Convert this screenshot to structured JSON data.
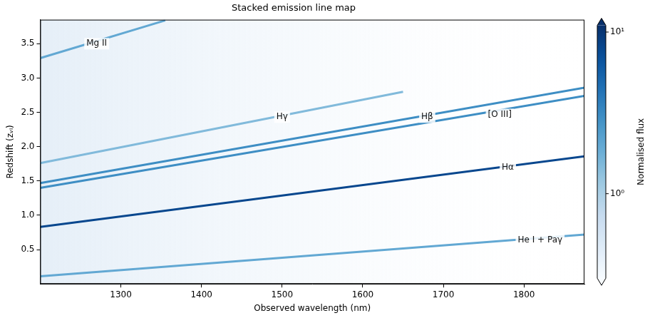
{
  "chart_data": {
    "type": "heatmap",
    "title": "Stacked emission line map",
    "x_label": "Observed wavelength (nm)",
    "y_label": "Redshift (zᵥᵢ)",
    "xlim": [
      1200,
      1875
    ],
    "xticks": [
      1300,
      1400,
      1500,
      1600,
      1700,
      1800
    ],
    "ylim": [
      0,
      3.85
    ],
    "yticks": [
      0.5,
      {
        "value": 1,
        "label": "1.0"
      },
      1.5,
      {
        "value": 2,
        "label": "2.0"
      },
      2.5,
      {
        "value": 3,
        "label": "3.0"
      },
      3.5
    ],
    "grid": false,
    "series": [
      {
        "name": "Mg II",
        "x": [
          1200,
          1355
        ],
        "values": [
          3.29,
          3.84
        ],
        "flux": 2,
        "label_x": 1270,
        "label_y": 3.5
      },
      {
        "name": "Hγ",
        "x": [
          1200,
          1650
        ],
        "values": [
          1.76,
          2.8
        ],
        "flux": 1.5,
        "label_x": 1500,
        "label_y": 2.43
      },
      {
        "name": "Hβ",
        "x": [
          1200,
          1875
        ],
        "values": [
          1.47,
          2.86
        ],
        "flux": 3,
        "label_x": 1680,
        "label_y": 2.43
      },
      {
        "name": "[O III]",
        "x": [
          1200,
          1875
        ],
        "values": [
          1.4,
          2.74
        ],
        "flux": 3,
        "label_x": 1770,
        "label_y": 2.47
      },
      {
        "name": "Hα",
        "x": [
          1200,
          1875
        ],
        "values": [
          0.83,
          1.86
        ],
        "flux": 8,
        "label_x": 1780,
        "label_y": 1.7
      },
      {
        "name": "He I + Paγ",
        "x": [
          1200,
          1875
        ],
        "values": [
          0.11,
          0.72
        ],
        "flux": 2,
        "label_x": 1820,
        "label_y": 0.64
      }
    ],
    "colorbar": {
      "label": "Normalised flux",
      "range": [
        0.3,
        11
      ],
      "log": true,
      "ticks": [
        {
          "value": 1,
          "label": "10⁰"
        },
        {
          "value": 10,
          "label": "10¹"
        }
      ]
    }
  }
}
